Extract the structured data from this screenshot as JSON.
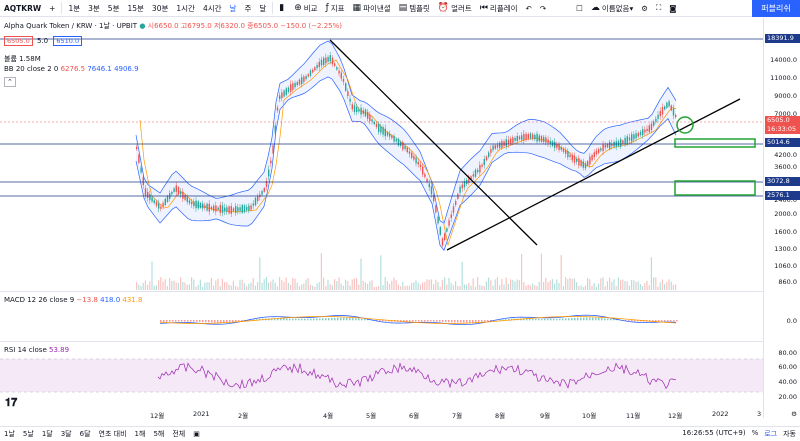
{
  "toolbar": {
    "symbol": "AQTKRW",
    "intervals": [
      "1분",
      "3분",
      "5분",
      "15분",
      "30분",
      "1시간",
      "4시간",
      "날",
      "주",
      "달"
    ],
    "active_interval": "날",
    "compare_label": "비교",
    "indicator_label": "지표",
    "pine_label": "파이낸셜",
    "template_label": "템플릿",
    "alert_label": "얼러트",
    "replay_label": "리플레이",
    "layout_name": "이름없음",
    "publish_label": "퍼블리쉬"
  },
  "legend": {
    "title": "Alpha Quark Token / KRW · 1날 · UPBIT",
    "ohlc": "시6650.0 고6795.0 저6320.0 종6505.0 −150.0 (−2.25%)",
    "bid": "6505.0",
    "spread": "5.0",
    "ask": "6510.0",
    "volume": "볼륨  1.58M",
    "bb": "BB 20 close 2 0",
    "bb_basis": "6276.5",
    "bb_upper": "7646.1",
    "bb_lower": "4906.9",
    "macd": "MACD 12 26 close 9",
    "macd_hist": "−13.8",
    "macd_line": "418.0",
    "macd_signal": "431.8",
    "rsi": "RSI 14 close",
    "rsi_value": "53.89"
  },
  "price_axis": {
    "labels": [
      "14000.0",
      "11000.0",
      "9000.0",
      "7000.0",
      "4200.0",
      "3600.0",
      "2400.0",
      "2000.0",
      "1600.0",
      "1300.0",
      "1060.0",
      "860.0"
    ],
    "tags": [
      {
        "text": "18391.9",
        "color": "#1e3a8a"
      },
      {
        "text": "6505.0",
        "color": "#ef5350"
      },
      {
        "text": "16:33:05",
        "color": "#ef5350"
      },
      {
        "text": "5014.6",
        "color": "#1e3a8a"
      },
      {
        "text": "3072.8",
        "color": "#1e3a8a"
      },
      {
        "text": "2576.1",
        "color": "#1e3a8a"
      }
    ],
    "macd_label": "0.0",
    "rsi_labels": [
      "80.00",
      "60.00",
      "40.00",
      "20.00"
    ]
  },
  "time_axis": [
    "12월",
    "2021",
    "2월",
    "4월",
    "5월",
    "6월",
    "7월",
    "8월",
    "9월",
    "10월",
    "11월",
    "12월",
    "2022",
    "3"
  ],
  "bottom": {
    "ranges": [
      "1날",
      "5날",
      "1달",
      "3달",
      "6달",
      "연초 대비",
      "1해",
      "5해",
      "전체"
    ],
    "clock": "16:26:55 (UTC+9)",
    "percent": "%",
    "log": "로그",
    "auto": "자동"
  },
  "colors": {
    "accent": "#2962ff",
    "down": "#ef5350",
    "up": "#26a69a",
    "band": "#2962ff",
    "hline": "#1e3a8a",
    "box": "#22a333",
    "rsi": "#9c27b0"
  }
}
